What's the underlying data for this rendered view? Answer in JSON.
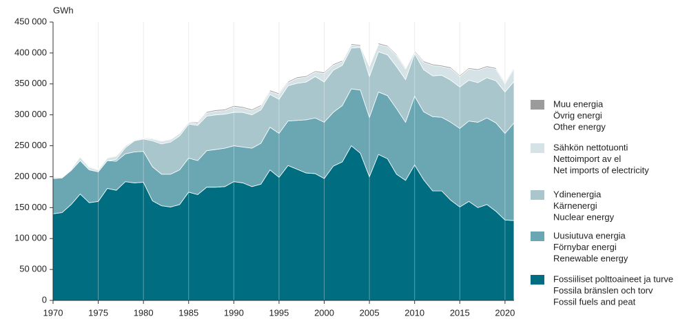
{
  "chart_data": {
    "type": "stacked_area",
    "y_unit": "GWh",
    "x": [
      1970,
      1971,
      1972,
      1973,
      1974,
      1975,
      1976,
      1977,
      1978,
      1979,
      1980,
      1981,
      1982,
      1983,
      1984,
      1985,
      1986,
      1987,
      1988,
      1989,
      1990,
      1991,
      1992,
      1993,
      1994,
      1995,
      1996,
      1997,
      1998,
      1999,
      2000,
      2001,
      2002,
      2003,
      2004,
      2005,
      2006,
      2007,
      2008,
      2009,
      2010,
      2011,
      2012,
      2013,
      2014,
      2015,
      2016,
      2017,
      2018,
      2019,
      2020,
      2021
    ],
    "xlim": [
      1970,
      2021
    ],
    "xticks": [
      1970,
      1975,
      1980,
      1985,
      1990,
      1995,
      2000,
      2005,
      2010,
      2015,
      2020
    ],
    "ylim": [
      0,
      450000
    ],
    "yticks": [
      0,
      {
        "value": 50000,
        "label": "50 000"
      },
      {
        "value": 100000,
        "label": "100 000"
      },
      {
        "value": 150000,
        "label": "150 000"
      },
      {
        "value": 200000,
        "label": "200 000"
      },
      {
        "value": 250000,
        "label": "250 000"
      },
      {
        "value": 300000,
        "label": "300 000"
      },
      {
        "value": 350000,
        "label": "350 000"
      },
      {
        "value": 400000,
        "label": "400 000"
      },
      {
        "value": 450000,
        "label": "450 000"
      }
    ],
    "grid": true,
    "series": [
      {
        "name": [
          "Fossiiliset polttoaineet ja turve",
          "Fossila bränslen och torv",
          "Fossil fuels and peat"
        ],
        "color": "#006e80",
        "values": [
          140000,
          142000,
          155000,
          172000,
          158000,
          160000,
          181000,
          178000,
          192000,
          190000,
          191000,
          161000,
          153000,
          151000,
          155000,
          175000,
          171000,
          183000,
          183000,
          184000,
          192000,
          190000,
          184000,
          188000,
          211000,
          199000,
          218000,
          212000,
          206000,
          205000,
          197000,
          217000,
          224000,
          250000,
          238000,
          200000,
          236000,
          229000,
          204000,
          194000,
          219000,
          195000,
          177000,
          177000,
          162000,
          151000,
          160000,
          150000,
          155000,
          144000,
          130000,
          129000
        ]
      },
      {
        "name": [
          "Uusiutuva energia",
          "Förnybar energi",
          "Renewable energy"
        ],
        "color": "#6ba6b3",
        "values": [
          57000,
          56000,
          55000,
          54000,
          53000,
          48000,
          45000,
          47000,
          45000,
          50000,
          50000,
          55000,
          51000,
          53000,
          56000,
          55000,
          55000,
          59000,
          61000,
          62000,
          58000,
          58000,
          62000,
          66000,
          69000,
          71000,
          72000,
          79000,
          86000,
          90000,
          91000,
          87000,
          91000,
          92000,
          102000,
          96000,
          101000,
          102000,
          106000,
          94000,
          111000,
          110000,
          120000,
          119000,
          126000,
          127000,
          130000,
          138000,
          140000,
          143000,
          140000,
          158000
        ]
      },
      {
        "name": [
          "Ydinenergia",
          "Kärnenergi",
          "Nuclear energy"
        ],
        "color": "#a9c6cd",
        "values": [
          0,
          0,
          0,
          0,
          0,
          0,
          0,
          3000,
          10000,
          18000,
          20000,
          42000,
          49000,
          52000,
          55000,
          55000,
          57000,
          56000,
          56000,
          55000,
          54000,
          56000,
          54000,
          54000,
          53000,
          55000,
          57000,
          60000,
          61000,
          67000,
          65000,
          68000,
          65000,
          66000,
          69000,
          66000,
          65000,
          66000,
          68000,
          69000,
          69000,
          68000,
          66000,
          68000,
          68000,
          67000,
          66000,
          64000,
          65000,
          68000,
          67000,
          67000
        ]
      },
      {
        "name": [
          "Sähkön nettotuonti",
          "Nettoimport av el",
          "Net imports of electricity"
        ],
        "color": "#d5e3e7",
        "values": [
          1000,
          1000,
          2000,
          6000,
          4000,
          3000,
          4000,
          5000,
          3000,
          1000,
          1000,
          3000,
          4000,
          4000,
          4000,
          3000,
          3000,
          5000,
          6000,
          6000,
          9000,
          7000,
          7000,
          6000,
          5000,
          8000,
          5000,
          8000,
          8000,
          7000,
          14000,
          8000,
          6000,
          5000,
          2000,
          16000,
          12000,
          13000,
          18000,
          17000,
          3000,
          12000,
          17000,
          14000,
          19000,
          17000,
          18000,
          20000,
          17000,
          19000,
          13000,
          21000
        ]
      },
      {
        "name": [
          "Muu energia",
          "Övrig energi",
          "Other energy"
        ],
        "color": "#9b9b9b",
        "values": [
          1000,
          1000,
          1000,
          1000,
          1000,
          1000,
          1000,
          1000,
          1000,
          1000,
          1000,
          1000,
          1000,
          1000,
          1000,
          1000,
          2000,
          2000,
          2000,
          2000,
          2000,
          2000,
          2000,
          2000,
          2000,
          2000,
          2000,
          2000,
          2000,
          2000,
          2000,
          2000,
          2000,
          2000,
          2000,
          2000,
          2000,
          2000,
          2000,
          2000,
          2000,
          2000,
          2000,
          2000,
          2000,
          2000,
          2000,
          2000,
          2000,
          2000,
          2000,
          2000
        ]
      }
    ]
  }
}
